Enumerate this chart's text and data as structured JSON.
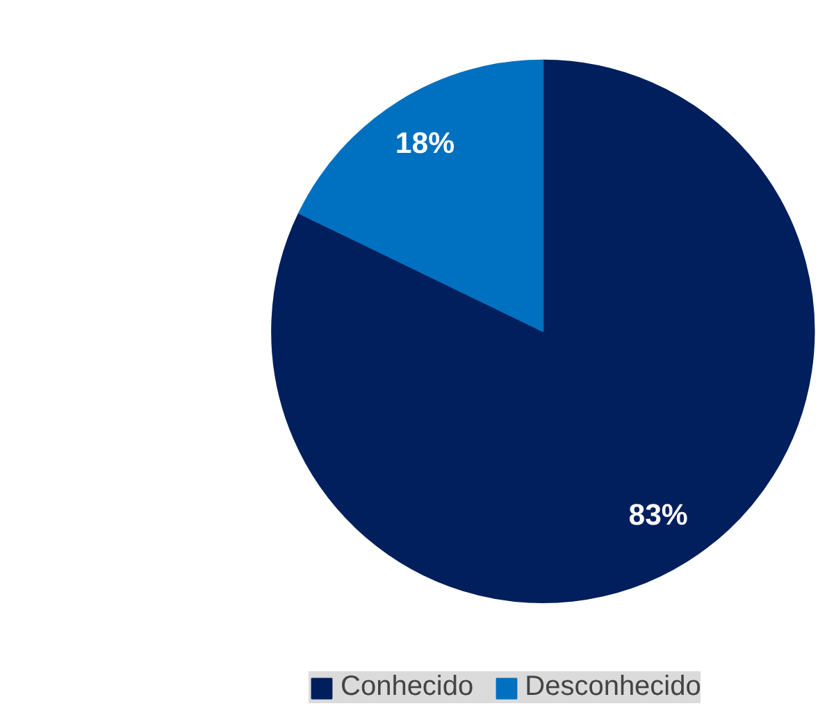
{
  "chart_data": {
    "type": "pie",
    "categories": [
      "Conhecido",
      "Desconhecido"
    ],
    "values": [
      83,
      18
    ],
    "colors": [
      "#001f5c",
      "#0070c0"
    ],
    "value_labels": [
      "83%",
      "18%"
    ],
    "legend": "bottom"
  }
}
